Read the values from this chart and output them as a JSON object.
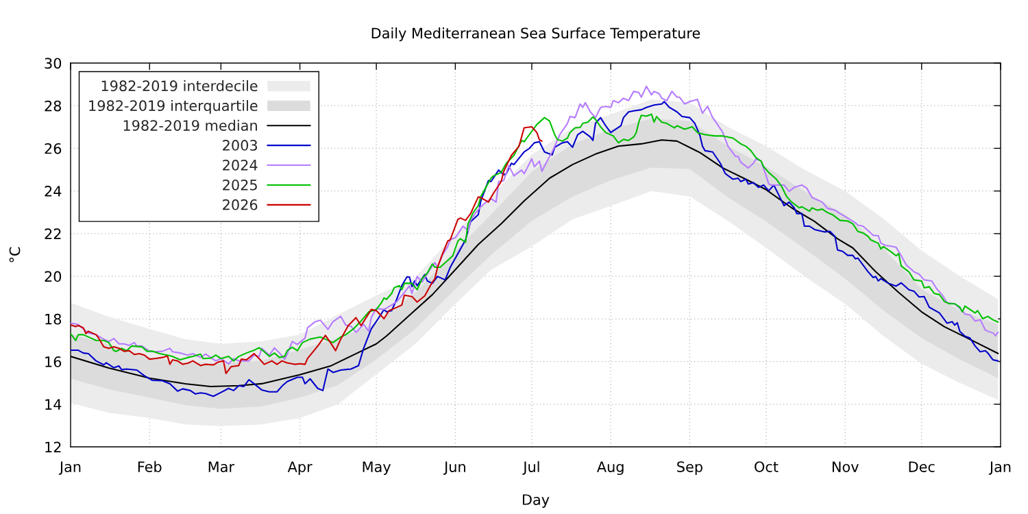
{
  "chart_data": {
    "type": "line",
    "title": "Daily Mediterranean Sea Surface Temperature",
    "xlabel": "Day",
    "ylabel": "°C",
    "xlim": [
      "2026-01-01",
      "2027-01-01"
    ],
    "xticks": [
      {
        "value": "2026-01-01",
        "label": "Jan"
      },
      {
        "value": "2026-02-01",
        "label": "Feb"
      },
      {
        "value": "2026-03-01",
        "label": "Mar"
      },
      {
        "value": "2026-04-01",
        "label": "Apr"
      },
      {
        "value": "2026-05-01",
        "label": "May"
      },
      {
        "value": "2026-06-01",
        "label": "Jun"
      },
      {
        "value": "2026-07-01",
        "label": "Jul"
      },
      {
        "value": "2026-08-01",
        "label": "Aug"
      },
      {
        "value": "2026-09-01",
        "label": "Sep"
      },
      {
        "value": "2026-10-01",
        "label": "Oct"
      },
      {
        "value": "2026-11-01",
        "label": "Nov"
      },
      {
        "value": "2026-12-01",
        "label": "Dec"
      },
      {
        "value": "2027-01-01",
        "label": "Jan"
      }
    ],
    "ylim": [
      12,
      30
    ],
    "yticks": [
      12,
      14,
      16,
      18,
      20,
      22,
      24,
      26,
      28,
      30
    ],
    "grid": true,
    "legend": "top left",
    "series": [
      {
        "name": "1982-2019 interdecile",
        "color": "#ececec",
        "x": [
          "2026-01-01",
          "2026-01-16",
          "2026-02-01",
          "2026-02-15",
          "2026-03-01",
          "2026-03-17",
          "2026-04-01",
          "2026-04-16",
          "2026-05-01",
          "2026-05-16",
          "2026-06-01",
          "2026-06-15",
          "2026-07-01",
          "2026-07-17",
          "2026-08-01",
          "2026-08-17",
          "2026-09-01",
          "2026-09-16",
          "2026-10-01",
          "2026-10-16",
          "2026-11-01",
          "2026-11-16",
          "2026-12-01",
          "2026-12-16",
          "2026-12-31"
        ],
        "values": [
          null,
          null,
          null,
          null,
          null,
          null,
          null,
          null,
          null,
          null,
          null,
          null,
          null,
          null,
          null,
          null,
          null,
          null,
          null,
          null,
          null,
          null,
          null,
          null,
          null
        ],
        "lower": [
          14.06,
          13.6,
          13.35,
          13.05,
          12.97,
          13.05,
          13.35,
          14.0,
          15.4,
          16.8,
          18.7,
          20.3,
          21.4,
          22.67,
          23.3,
          24.0,
          23.74,
          22.6,
          21.33,
          20.0,
          18.7,
          17.2,
          15.9,
          15.0,
          14.2
        ],
        "upper": [
          18.76,
          18.1,
          17.53,
          17.05,
          16.83,
          16.95,
          17.26,
          18.2,
          19.1,
          19.9,
          22.0,
          23.8,
          25.7,
          26.96,
          27.6,
          28.3,
          28.14,
          27.0,
          26.1,
          25.0,
          24.0,
          22.7,
          21.2,
          20.0,
          18.92
        ]
      },
      {
        "name": "1982-2019 interquartile",
        "color": "#dcdcdc",
        "x": [
          "2026-01-01",
          "2026-01-16",
          "2026-02-01",
          "2026-02-15",
          "2026-03-01",
          "2026-03-17",
          "2026-04-01",
          "2026-04-16",
          "2026-05-01",
          "2026-05-16",
          "2026-06-01",
          "2026-06-15",
          "2026-07-01",
          "2026-07-17",
          "2026-08-01",
          "2026-08-17",
          "2026-09-01",
          "2026-09-16",
          "2026-10-01",
          "2026-10-16",
          "2026-11-01",
          "2026-11-16",
          "2026-12-01",
          "2026-12-16",
          "2026-12-31"
        ],
        "values": [
          null,
          null,
          null,
          null,
          null,
          null,
          null,
          null,
          null,
          null,
          null,
          null,
          null,
          null,
          null,
          null,
          null,
          null,
          null,
          null,
          null,
          null,
          null,
          null,
          null
        ],
        "lower": [
          15.2,
          14.7,
          14.31,
          13.95,
          13.78,
          13.9,
          14.31,
          14.9,
          16.1,
          17.5,
          19.4,
          21.0,
          22.6,
          23.74,
          24.5,
          25.1,
          25.03,
          23.7,
          22.57,
          21.3,
          19.88,
          18.4,
          17.1,
          16.1,
          15.22
        ],
        "upper": [
          17.3,
          16.8,
          16.2,
          15.95,
          15.92,
          16.05,
          16.56,
          17.1,
          17.8,
          19.2,
          21.2,
          22.9,
          24.9,
          26.2,
          26.9,
          27.4,
          27.28,
          26.1,
          25.14,
          24.0,
          22.89,
          21.3,
          19.4,
          18.4,
          17.74
        ]
      },
      {
        "name": "1982-2019 median",
        "color": "#000000",
        "x": [
          "2026-01-01",
          "2026-01-16",
          "2026-02-01",
          "2026-02-15",
          "2026-02-25",
          "2026-03-08",
          "2026-03-17",
          "2026-04-01",
          "2026-04-13",
          "2026-04-22",
          "2026-05-01",
          "2026-05-05",
          "2026-05-14",
          "2026-05-23",
          "2026-06-01",
          "2026-06-10",
          "2026-06-19",
          "2026-06-28",
          "2026-07-01",
          "2026-07-08",
          "2026-07-17",
          "2026-07-26",
          "2026-08-04",
          "2026-08-13",
          "2026-08-21",
          "2026-08-27",
          "2026-09-05",
          "2026-09-14",
          "2026-09-23",
          "2026-10-01",
          "2026-10-11",
          "2026-10-20",
          "2026-10-29",
          "2026-11-04",
          "2026-11-13",
          "2026-11-22",
          "2026-12-01",
          "2026-12-10",
          "2026-12-19",
          "2026-12-31"
        ],
        "values": [
          16.24,
          15.7,
          15.22,
          14.96,
          14.83,
          14.87,
          14.96,
          15.38,
          15.79,
          16.31,
          16.83,
          17.2,
          18.17,
          19.14,
          20.31,
          21.49,
          22.46,
          23.53,
          23.85,
          24.6,
          25.24,
          25.73,
          26.1,
          26.21,
          26.39,
          26.34,
          25.8,
          25.08,
          24.55,
          24.06,
          23.21,
          22.57,
          21.76,
          21.33,
          20.21,
          19.24,
          18.33,
          17.63,
          17.1,
          16.38
        ]
      },
      {
        "name": "2003",
        "color": "#0000cc",
        "x": [
          "2026-01-01",
          "2026-01-04",
          "2026-01-06",
          "2026-01-08",
          "2026-01-11",
          "2026-01-14",
          "2026-01-15",
          "2026-01-18",
          "2026-01-20",
          "2026-01-21",
          "2026-01-23",
          "2026-01-27",
          "2026-01-30",
          "2026-02-02",
          "2026-02-06",
          "2026-02-09",
          "2026-02-12",
          "2026-02-14",
          "2026-02-17",
          "2026-02-19",
          "2026-02-21",
          "2026-02-23",
          "2026-02-26",
          "2026-03-01",
          "2026-03-04",
          "2026-03-06",
          "2026-03-08",
          "2026-03-10",
          "2026-03-12",
          "2026-03-14",
          "2026-03-17",
          "2026-03-20",
          "2026-03-23",
          "2026-03-25",
          "2026-03-27",
          "2026-03-31",
          "2026-04-02",
          "2026-04-03",
          "2026-04-05",
          "2026-04-08",
          "2026-04-10",
          "2026-04-12",
          "2026-04-14",
          "2026-04-17",
          "2026-04-21",
          "2026-04-24",
          "2026-04-26",
          "2026-04-29",
          "2026-05-02",
          "2026-05-04",
          "2026-05-05",
          "2026-05-07",
          "2026-05-09",
          "2026-05-11",
          "2026-05-13",
          "2026-05-14",
          "2026-05-15",
          "2026-05-16",
          "2026-05-17",
          "2026-05-20",
          "2026-05-21",
          "2026-05-23",
          "2026-05-25",
          "2026-05-28",
          "2026-05-30",
          "2026-06-02",
          "2026-06-05",
          "2026-06-07",
          "2026-06-10",
          "2026-06-11",
          "2026-06-14",
          "2026-06-15",
          "2026-06-18",
          "2026-06-20",
          "2026-06-21",
          "2026-06-23",
          "2026-06-24",
          "2026-06-28",
          "2026-06-30",
          "2026-07-02",
          "2026-07-04",
          "2026-07-06",
          "2026-07-09",
          "2026-07-10",
          "2026-07-13",
          "2026-07-15",
          "2026-07-17",
          "2026-07-19",
          "2026-07-21",
          "2026-07-24",
          "2026-07-25",
          "2026-07-26",
          "2026-07-28",
          "2026-07-30",
          "2026-08-01",
          "2026-08-03",
          "2026-08-05",
          "2026-08-06",
          "2026-08-08",
          "2026-08-10",
          "2026-08-13",
          "2026-08-15",
          "2026-08-18",
          "2026-08-21",
          "2026-08-22",
          "2026-08-24",
          "2026-08-27",
          "2026-08-29",
          "2026-09-01",
          "2026-09-03",
          "2026-09-05",
          "2026-09-06",
          "2026-09-07",
          "2026-09-10",
          "2026-09-13",
          "2026-09-15",
          "2026-09-18",
          "2026-09-20",
          "2026-09-21",
          "2026-09-23",
          "2026-09-24",
          "2026-09-26",
          "2026-09-28",
          "2026-09-30",
          "2026-10-02",
          "2026-10-04",
          "2026-10-06",
          "2026-10-08",
          "2026-10-10",
          "2026-10-12",
          "2026-10-13",
          "2026-10-15",
          "2026-10-16",
          "2026-10-18",
          "2026-10-20",
          "2026-10-24",
          "2026-10-26",
          "2026-10-28",
          "2026-10-29",
          "2026-10-31",
          "2026-11-02",
          "2026-11-04",
          "2026-11-05",
          "2026-11-06",
          "2026-11-08",
          "2026-11-10",
          "2026-11-12",
          "2026-11-13",
          "2026-11-14",
          "2026-11-15",
          "2026-11-18",
          "2026-11-21",
          "2026-11-23",
          "2026-11-26",
          "2026-11-28",
          "2026-11-30",
          "2026-12-02",
          "2026-12-04",
          "2026-12-08",
          "2026-12-11",
          "2026-12-13",
          "2026-12-14",
          "2026-12-15",
          "2026-12-16",
          "2026-12-18",
          "2026-12-20",
          "2026-12-22",
          "2026-12-24",
          "2026-12-26",
          "2026-12-27",
          "2026-12-29",
          "2026-12-31"
        ],
        "values": [
          16.53,
          16.53,
          16.4,
          16.37,
          16.03,
          15.85,
          15.94,
          15.71,
          15.79,
          15.62,
          15.65,
          15.6,
          15.33,
          15.12,
          15.1,
          14.96,
          14.61,
          14.72,
          14.64,
          14.48,
          14.53,
          14.5,
          14.37,
          14.55,
          14.74,
          14.64,
          14.87,
          14.83,
          15.15,
          14.96,
          14.67,
          14.58,
          14.58,
          14.85,
          15.06,
          15.26,
          15.26,
          14.96,
          15.19,
          14.74,
          14.64,
          15.65,
          15.49,
          15.6,
          15.65,
          15.81,
          16.62,
          17.53,
          18.06,
          18.44,
          18.33,
          18.39,
          18.92,
          19.56,
          19.97,
          19.96,
          19.51,
          19.78,
          19.56,
          20.08,
          19.78,
          19.67,
          19.99,
          19.83,
          20.42,
          21.06,
          21.71,
          22.56,
          22.89,
          23.53,
          24.49,
          24.44,
          24.98,
          24.76,
          24.81,
          25.3,
          25.24,
          25.83,
          25.99,
          26.26,
          26.31,
          25.83,
          25.69,
          26.05,
          26.26,
          26.31,
          26.05,
          26.64,
          26.8,
          26.53,
          26.37,
          27.17,
          27.44,
          27.06,
          26.74,
          26.9,
          27.06,
          27.44,
          27.71,
          27.76,
          27.81,
          27.92,
          28.03,
          28.08,
          28.19,
          27.92,
          27.71,
          27.49,
          27.44,
          27.17,
          26.6,
          26.1,
          25.89,
          25.83,
          25.3,
          24.81,
          24.55,
          24.6,
          24.44,
          24.55,
          24.33,
          24.39,
          24.17,
          24.28,
          24.01,
          24.28,
          23.8,
          23.31,
          23.48,
          23.21,
          22.94,
          22.94,
          22.35,
          22.35,
          22.19,
          22.08,
          22.11,
          21.87,
          21.23,
          21.17,
          20.98,
          20.98,
          20.82,
          20.85,
          20.53,
          20.21,
          19.94,
          19.99,
          19.78,
          19.89,
          19.67,
          19.54,
          19.69,
          19.37,
          19.3,
          19.03,
          19.05,
          18.55,
          18.28,
          17.8,
          17.87,
          17.71,
          17.82,
          17.42,
          17.19,
          17.1,
          16.73,
          16.46,
          16.51,
          16.4,
          16.08,
          16.03
        ]
      },
      {
        "name": "2024",
        "color": "#b57bff",
        "x": [
          "2026-01-01",
          "2026-01-04",
          "2026-01-06",
          "2026-01-08",
          "2026-01-11",
          "2026-01-14",
          "2026-01-16",
          "2026-01-18",
          "2026-01-20",
          "2026-01-22",
          "2026-01-24",
          "2026-01-26",
          "2026-01-27",
          "2026-01-29",
          "2026-02-01",
          "2026-02-03",
          "2026-02-06",
          "2026-02-09",
          "2026-02-10",
          "2026-02-13",
          "2026-02-16",
          "2026-02-18",
          "2026-02-21",
          "2026-02-23",
          "2026-02-27",
          "2026-03-01",
          "2026-03-04",
          "2026-03-06",
          "2026-03-08",
          "2026-03-12",
          "2026-03-14",
          "2026-03-16",
          "2026-03-17",
          "2026-03-20",
          "2026-03-22",
          "2026-03-24",
          "2026-03-26",
          "2026-03-27",
          "2026-03-29",
          "2026-03-31",
          "2026-04-03",
          "2026-04-04",
          "2026-04-07",
          "2026-04-09",
          "2026-04-12",
          "2026-04-14",
          "2026-04-17",
          "2026-04-19",
          "2026-04-21",
          "2026-04-23",
          "2026-04-26",
          "2026-04-28",
          "2026-04-29",
          "2026-05-01",
          "2026-05-04",
          "2026-05-07",
          "2026-05-09",
          "2026-05-12",
          "2026-05-14",
          "2026-05-15",
          "2026-05-17",
          "2026-05-19",
          "2026-05-22",
          "2026-05-24",
          "2026-05-25",
          "2026-05-27",
          "2026-05-29",
          "2026-05-30",
          "2026-06-01",
          "2026-06-02",
          "2026-06-04",
          "2026-06-06",
          "2026-06-07",
          "2026-06-09",
          "2026-06-11",
          "2026-06-12",
          "2026-06-15",
          "2026-06-17",
          "2026-06-18",
          "2026-06-20",
          "2026-06-22",
          "2026-06-24",
          "2026-06-27",
          "2026-06-28",
          "2026-06-29",
          "2026-07-01",
          "2026-07-02",
          "2026-07-04",
          "2026-07-05",
          "2026-07-07",
          "2026-07-09",
          "2026-07-12",
          "2026-07-15",
          "2026-07-16",
          "2026-07-18",
          "2026-07-20",
          "2026-07-21",
          "2026-07-22",
          "2026-07-24",
          "2026-07-26",
          "2026-07-28",
          "2026-07-30",
          "2026-08-01",
          "2026-08-02",
          "2026-08-04",
          "2026-08-06",
          "2026-08-08",
          "2026-08-10",
          "2026-08-12",
          "2026-08-13",
          "2026-08-15",
          "2026-08-17",
          "2026-08-18",
          "2026-08-20",
          "2026-08-21",
          "2026-08-23",
          "2026-08-25",
          "2026-08-27",
          "2026-08-28",
          "2026-08-30",
          "2026-09-01",
          "2026-09-04",
          "2026-09-06",
          "2026-09-08",
          "2026-09-10",
          "2026-09-12",
          "2026-09-14",
          "2026-09-16",
          "2026-09-19",
          "2026-09-20",
          "2026-09-21",
          "2026-09-24",
          "2026-09-26",
          "2026-09-27",
          "2026-09-29",
          "2026-10-01",
          "2026-10-02",
          "2026-10-03",
          "2026-10-06",
          "2026-10-08",
          "2026-10-10",
          "2026-10-12",
          "2026-10-15",
          "2026-10-17",
          "2026-10-19",
          "2026-10-20",
          "2026-10-23",
          "2026-10-25",
          "2026-10-28",
          "2026-10-30",
          "2026-11-02",
          "2026-11-05",
          "2026-11-06",
          "2026-11-08",
          "2026-11-10",
          "2026-11-12",
          "2026-11-14",
          "2026-11-15",
          "2026-11-17",
          "2026-11-19",
          "2026-11-21",
          "2026-11-23",
          "2026-11-25",
          "2026-11-28",
          "2026-11-30",
          "2026-12-02",
          "2026-12-05",
          "2026-12-07",
          "2026-12-09",
          "2026-12-11",
          "2026-12-14",
          "2026-12-17",
          "2026-12-18",
          "2026-12-20",
          "2026-12-22",
          "2026-12-24",
          "2026-12-26",
          "2026-12-27",
          "2026-12-29",
          "2026-12-30",
          "2026-12-31"
        ],
        "values": [
          17.8,
          17.74,
          17.53,
          17.34,
          17.26,
          17.05,
          16.94,
          17.08,
          16.83,
          16.83,
          16.76,
          16.89,
          16.73,
          16.73,
          16.48,
          16.46,
          16.48,
          16.62,
          16.46,
          16.4,
          16.3,
          16.37,
          16.19,
          16.35,
          16.03,
          16.14,
          15.89,
          16.14,
          16.03,
          16.03,
          16.3,
          16.24,
          16.62,
          16.3,
          16.64,
          16.4,
          16.11,
          16.35,
          16.94,
          16.8,
          17.1,
          17.58,
          17.87,
          17.94,
          17.51,
          17.87,
          18.12,
          17.71,
          17.66,
          17.37,
          17.74,
          17.42,
          18.06,
          18.49,
          18.44,
          18.65,
          18.81,
          19.24,
          19.56,
          19.19,
          19.99,
          19.73,
          20.31,
          20.64,
          20.42,
          21.01,
          21.39,
          21.71,
          21.81,
          21.98,
          22.35,
          22.14,
          22.62,
          22.99,
          23.26,
          23.37,
          23.64,
          23.48,
          24.44,
          24.49,
          25.19,
          24.71,
          24.98,
          24.81,
          25.03,
          25.51,
          25.14,
          25.4,
          24.92,
          25.4,
          25.83,
          26.64,
          27.17,
          27.49,
          27.44,
          28.08,
          27.92,
          28.14,
          27.71,
          27.44,
          27.92,
          27.97,
          27.92,
          28.24,
          28.14,
          28.35,
          28.24,
          28.67,
          28.62,
          28.4,
          28.91,
          28.51,
          28.67,
          28.56,
          28.35,
          28.24,
          28.67,
          28.4,
          28.4,
          28.08,
          28.19,
          28.3,
          27.65,
          27.97,
          27.44,
          27.1,
          26.74,
          26.1,
          25.62,
          25.62,
          25.35,
          25.08,
          25.3,
          25.51,
          25.4,
          24.71,
          24.33,
          24.28,
          24.28,
          24.28,
          23.98,
          24.17,
          24.28,
          24.12,
          23.69,
          23.64,
          23.48,
          23.19,
          23.1,
          22.94,
          22.73,
          22.51,
          22.4,
          22.35,
          22.14,
          21.92,
          21.9,
          21.55,
          21.44,
          21.41,
          21.36,
          20.96,
          20.53,
          20.21,
          20.1,
          19.83,
          19.78,
          19.4,
          19.14,
          18.76,
          18.71,
          18.39,
          18.23,
          18.19,
          17.9,
          17.96,
          17.48,
          17.42,
          17.34,
          17.21,
          17.37
        ]
      },
      {
        "name": "2025",
        "color": "#00c000",
        "x": [
          "2026-01-01",
          "2026-01-03",
          "2026-01-04",
          "2026-01-06",
          "2026-01-09",
          "2026-01-11",
          "2026-01-14",
          "2026-01-16",
          "2026-01-18",
          "2026-01-19",
          "2026-01-21",
          "2026-01-23",
          "2026-01-25",
          "2026-01-29",
          "2026-01-31",
          "2026-02-02",
          "2026-02-05",
          "2026-02-08",
          "2026-02-10",
          "2026-02-13",
          "2026-02-16",
          "2026-02-18",
          "2026-02-21",
          "2026-02-22",
          "2026-02-25",
          "2026-02-27",
          "2026-03-01",
          "2026-03-04",
          "2026-03-06",
          "2026-03-08",
          "2026-03-11",
          "2026-03-14",
          "2026-03-16",
          "2026-03-18",
          "2026-03-20",
          "2026-03-22",
          "2026-03-24",
          "2026-03-26",
          "2026-03-27",
          "2026-03-29",
          "2026-03-31",
          "2026-04-02",
          "2026-04-05",
          "2026-04-07",
          "2026-04-09",
          "2026-04-11",
          "2026-04-14",
          "2026-04-17",
          "2026-04-19",
          "2026-04-22",
          "2026-04-25",
          "2026-04-28",
          "2026-05-01",
          "2026-05-03",
          "2026-05-04",
          "2026-05-05",
          "2026-05-07",
          "2026-05-08",
          "2026-05-10",
          "2026-05-11",
          "2026-05-12",
          "2026-05-15",
          "2026-05-17",
          "2026-05-19",
          "2026-05-21",
          "2026-05-23",
          "2026-05-24",
          "2026-05-26",
          "2026-05-29",
          "2026-05-31",
          "2026-06-02",
          "2026-06-03",
          "2026-06-05",
          "2026-06-06",
          "2026-06-08",
          "2026-06-10",
          "2026-06-11",
          "2026-06-13",
          "2026-06-15",
          "2026-06-16",
          "2026-06-19",
          "2026-06-21",
          "2026-06-24",
          "2026-06-27",
          "2026-06-28",
          "2026-07-01",
          "2026-07-03",
          "2026-07-06",
          "2026-07-08",
          "2026-07-09",
          "2026-07-10",
          "2026-07-11",
          "2026-07-13",
          "2026-07-15",
          "2026-07-16",
          "2026-07-18",
          "2026-07-20",
          "2026-07-21",
          "2026-07-23",
          "2026-07-25",
          "2026-07-26",
          "2026-07-28",
          "2026-07-30",
          "2026-08-02",
          "2026-08-04",
          "2026-08-06",
          "2026-08-08",
          "2026-08-10",
          "2026-08-11",
          "2026-08-12",
          "2026-08-13",
          "2026-08-15",
          "2026-08-17",
          "2026-08-18",
          "2026-08-19",
          "2026-08-21",
          "2026-08-23",
          "2026-08-26",
          "2026-08-27",
          "2026-08-30",
          "2026-09-02",
          "2026-09-04",
          "2026-09-07",
          "2026-09-11",
          "2026-09-14",
          "2026-09-18",
          "2026-09-21",
          "2026-09-23",
          "2026-09-25",
          "2026-09-27",
          "2026-09-29",
          "2026-09-30",
          "2026-10-02",
          "2026-10-05",
          "2026-10-07",
          "2026-10-09",
          "2026-10-11",
          "2026-10-14",
          "2026-10-15",
          "2026-10-18",
          "2026-10-19",
          "2026-10-21",
          "2026-10-23",
          "2026-10-25",
          "2026-10-27",
          "2026-10-30",
          "2026-11-02",
          "2026-11-04",
          "2026-11-06",
          "2026-11-08",
          "2026-11-10",
          "2026-11-11",
          "2026-11-14",
          "2026-11-15",
          "2026-11-16",
          "2026-11-19",
          "2026-11-21",
          "2026-11-22",
          "2026-11-23",
          "2026-11-26",
          "2026-11-28",
          "2026-12-01",
          "2026-12-02",
          "2026-12-04",
          "2026-12-06",
          "2026-12-08",
          "2026-12-10",
          "2026-12-12",
          "2026-12-14",
          "2026-12-16",
          "2026-12-17",
          "2026-12-18",
          "2026-12-20",
          "2026-12-22",
          "2026-12-23",
          "2026-12-25",
          "2026-12-27",
          "2026-12-29",
          "2026-12-31"
        ],
        "values": [
          17.31,
          16.99,
          17.26,
          17.26,
          17.1,
          16.99,
          16.99,
          16.89,
          16.51,
          16.48,
          16.62,
          16.51,
          16.73,
          16.69,
          16.48,
          16.49,
          16.37,
          16.3,
          16.24,
          16.08,
          16.19,
          16.24,
          16.35,
          16.14,
          16.16,
          16.3,
          16.14,
          16.24,
          16.03,
          16.24,
          16.4,
          16.53,
          16.65,
          16.46,
          16.24,
          16.4,
          16.19,
          16.24,
          16.51,
          16.67,
          16.51,
          16.89,
          17.05,
          17.1,
          17.15,
          17.05,
          16.89,
          17.15,
          17.26,
          17.53,
          17.9,
          18.33,
          18.44,
          18.76,
          18.98,
          18.92,
          19.19,
          19.46,
          19.56,
          19.37,
          19.67,
          19.67,
          19.37,
          19.89,
          20.15,
          20.58,
          20.42,
          20.42,
          20.74,
          20.96,
          21.65,
          21.76,
          21.6,
          22.46,
          22.99,
          23.31,
          23.74,
          24.17,
          24.6,
          24.71,
          24.87,
          25.3,
          25.67,
          26.37,
          26.31,
          26.8,
          27.12,
          27.44,
          27.28,
          26.96,
          26.64,
          26.42,
          26.34,
          26.48,
          26.74,
          26.96,
          26.98,
          27.17,
          27.23,
          27.47,
          27.36,
          27.01,
          26.74,
          26.58,
          26.26,
          26.42,
          26.37,
          26.53,
          26.74,
          27.23,
          27.55,
          27.51,
          27.6,
          27.23,
          27.49,
          27.23,
          27.17,
          26.96,
          27.06,
          26.9,
          27.01,
          26.74,
          26.64,
          26.58,
          26.58,
          26.48,
          26.21,
          26.1,
          25.89,
          25.56,
          25.4,
          25.14,
          24.87,
          24.55,
          24.23,
          23.74,
          23.48,
          23.21,
          23.26,
          23.05,
          23.21,
          23.1,
          23.15,
          22.99,
          22.89,
          22.62,
          22.59,
          22.46,
          22.1,
          22.03,
          21.87,
          21.71,
          21.55,
          21.28,
          21.39,
          21.15,
          20.96,
          21.06,
          20.48,
          20.21,
          19.83,
          19.78,
          19.46,
          19.51,
          19.19,
          19.14,
          18.81,
          18.71,
          18.71,
          18.55,
          18.33,
          18.6,
          18.44,
          18.28,
          18.39,
          18.01,
          18.12,
          17.96,
          17.85
        ]
      },
      {
        "name": "2026",
        "color": "#cc0000",
        "x": [
          "2026-01-01",
          "2026-01-03",
          "2026-01-04",
          "2026-01-06",
          "2026-01-07",
          "2026-01-08",
          "2026-01-11",
          "2026-01-12",
          "2026-01-14",
          "2026-01-16",
          "2026-01-18",
          "2026-01-20",
          "2026-01-22",
          "2026-01-24",
          "2026-01-26",
          "2026-01-28",
          "2026-01-30",
          "2026-02-01",
          "2026-02-03",
          "2026-02-06",
          "2026-02-08",
          "2026-02-09",
          "2026-02-10",
          "2026-02-12",
          "2026-02-14",
          "2026-02-16",
          "2026-02-18",
          "2026-02-21",
          "2026-02-23",
          "2026-02-26",
          "2026-02-28",
          "2026-03-02",
          "2026-03-03",
          "2026-03-05",
          "2026-03-08",
          "2026-03-09",
          "2026-03-11",
          "2026-03-14",
          "2026-03-16",
          "2026-03-18",
          "2026-03-21",
          "2026-03-23",
          "2026-03-25",
          "2026-03-27",
          "2026-03-30",
          "2026-04-01",
          "2026-04-03",
          "2026-04-04",
          "2026-04-08",
          "2026-04-11",
          "2026-04-13",
          "2026-04-15",
          "2026-04-17",
          "2026-04-20",
          "2026-04-23",
          "2026-04-25",
          "2026-04-26",
          "2026-04-29",
          "2026-05-01",
          "2026-05-04",
          "2026-05-06",
          "2026-05-08",
          "2026-05-11",
          "2026-05-12",
          "2026-05-15",
          "2026-05-17",
          "2026-05-20",
          "2026-05-23",
          "2026-05-24",
          "2026-05-25",
          "2026-05-27",
          "2026-05-29",
          "2026-05-30",
          "2026-06-02",
          "2026-06-03",
          "2026-06-05",
          "2026-06-07",
          "2026-06-10",
          "2026-06-11",
          "2026-06-14",
          "2026-06-16",
          "2026-06-19",
          "2026-06-20",
          "2026-06-23",
          "2026-06-26",
          "2026-06-28",
          "2026-07-01",
          "2026-07-03",
          "2026-07-04",
          "2026-07-05"
        ],
        "values": [
          17.72,
          17.64,
          17.69,
          17.58,
          17.31,
          17.42,
          17.26,
          17.1,
          16.69,
          16.62,
          16.69,
          16.62,
          16.48,
          16.51,
          16.33,
          16.37,
          16.3,
          16.11,
          16.14,
          16.19,
          16.26,
          15.87,
          16.08,
          16.03,
          15.87,
          15.92,
          16.03,
          15.81,
          15.87,
          15.84,
          15.98,
          16.03,
          15.44,
          15.76,
          15.81,
          16.11,
          16.08,
          16.37,
          16.14,
          15.87,
          16.03,
          15.87,
          16.03,
          15.94,
          15.87,
          15.9,
          15.87,
          16.14,
          16.73,
          17.23,
          16.89,
          16.51,
          17.05,
          17.69,
          18.06,
          17.69,
          17.87,
          18.44,
          18.39,
          18.01,
          18.39,
          18.49,
          18.65,
          19.11,
          19.05,
          18.79,
          19.08,
          19.73,
          19.89,
          20.42,
          21.06,
          21.65,
          21.71,
          22.67,
          22.73,
          22.62,
          22.94,
          23.72,
          23.69,
          23.48,
          23.9,
          24.44,
          24.92,
          25.67,
          26.1,
          26.96,
          27.01,
          26.74,
          26.4,
          26.34
        ]
      }
    ]
  }
}
